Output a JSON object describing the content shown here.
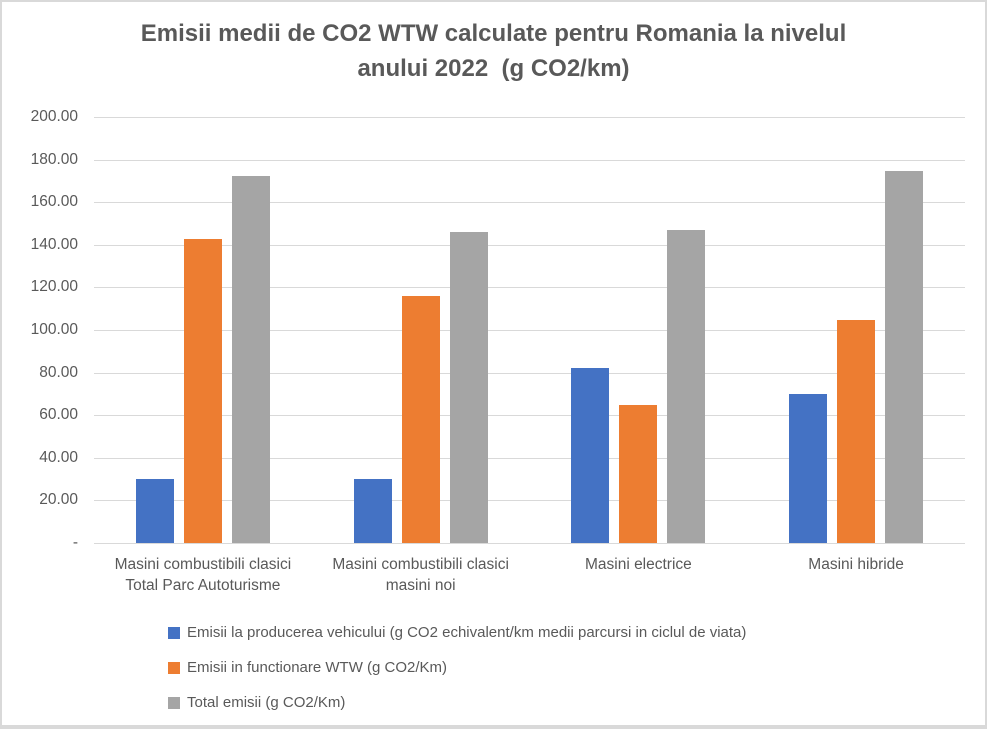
{
  "chart_data": {
    "type": "bar",
    "title": "Emisii medii de CO2 WTW calculate pentru Romania la nivelul\nanului 2022  (g CO2/km)",
    "categories": [
      "Masini combustibili clasici\nTotal Parc Autoturisme",
      "Masini combustibili clasici\nmasini noi",
      "Masini electrice",
      "Masini hibride"
    ],
    "series": [
      {
        "name": "Emisii la producerea vehicului (g CO2 echivalent/km medii parcursi in ciclul de viata)",
        "color": "#4472C4",
        "values": [
          30,
          30,
          82,
          70
        ]
      },
      {
        "name": "Emisii in functionare WTW (g CO2/Km)",
        "color": "#ED7D31",
        "values": [
          142.5,
          116,
          65,
          104.5
        ]
      },
      {
        "name": "Total emisii (g CO2/Km)",
        "color": "#A5A5A5",
        "values": [
          172.5,
          146,
          147,
          174.5
        ]
      }
    ],
    "y_axis": {
      "min": 0,
      "max": 200,
      "step": 20,
      "tick_labels": [
        "200.00",
        "180.00",
        "160.00",
        "140.00",
        "120.00",
        "100.00",
        "80.00",
        "60.00",
        "40.00",
        "20.00",
        "-"
      ]
    },
    "grid": true,
    "legend_position": "bottom-left",
    "colors": {
      "text": "#595959",
      "gridline": "#D9D9D9",
      "border": "#D9D9D9",
      "background": "#FFFFFF"
    }
  }
}
